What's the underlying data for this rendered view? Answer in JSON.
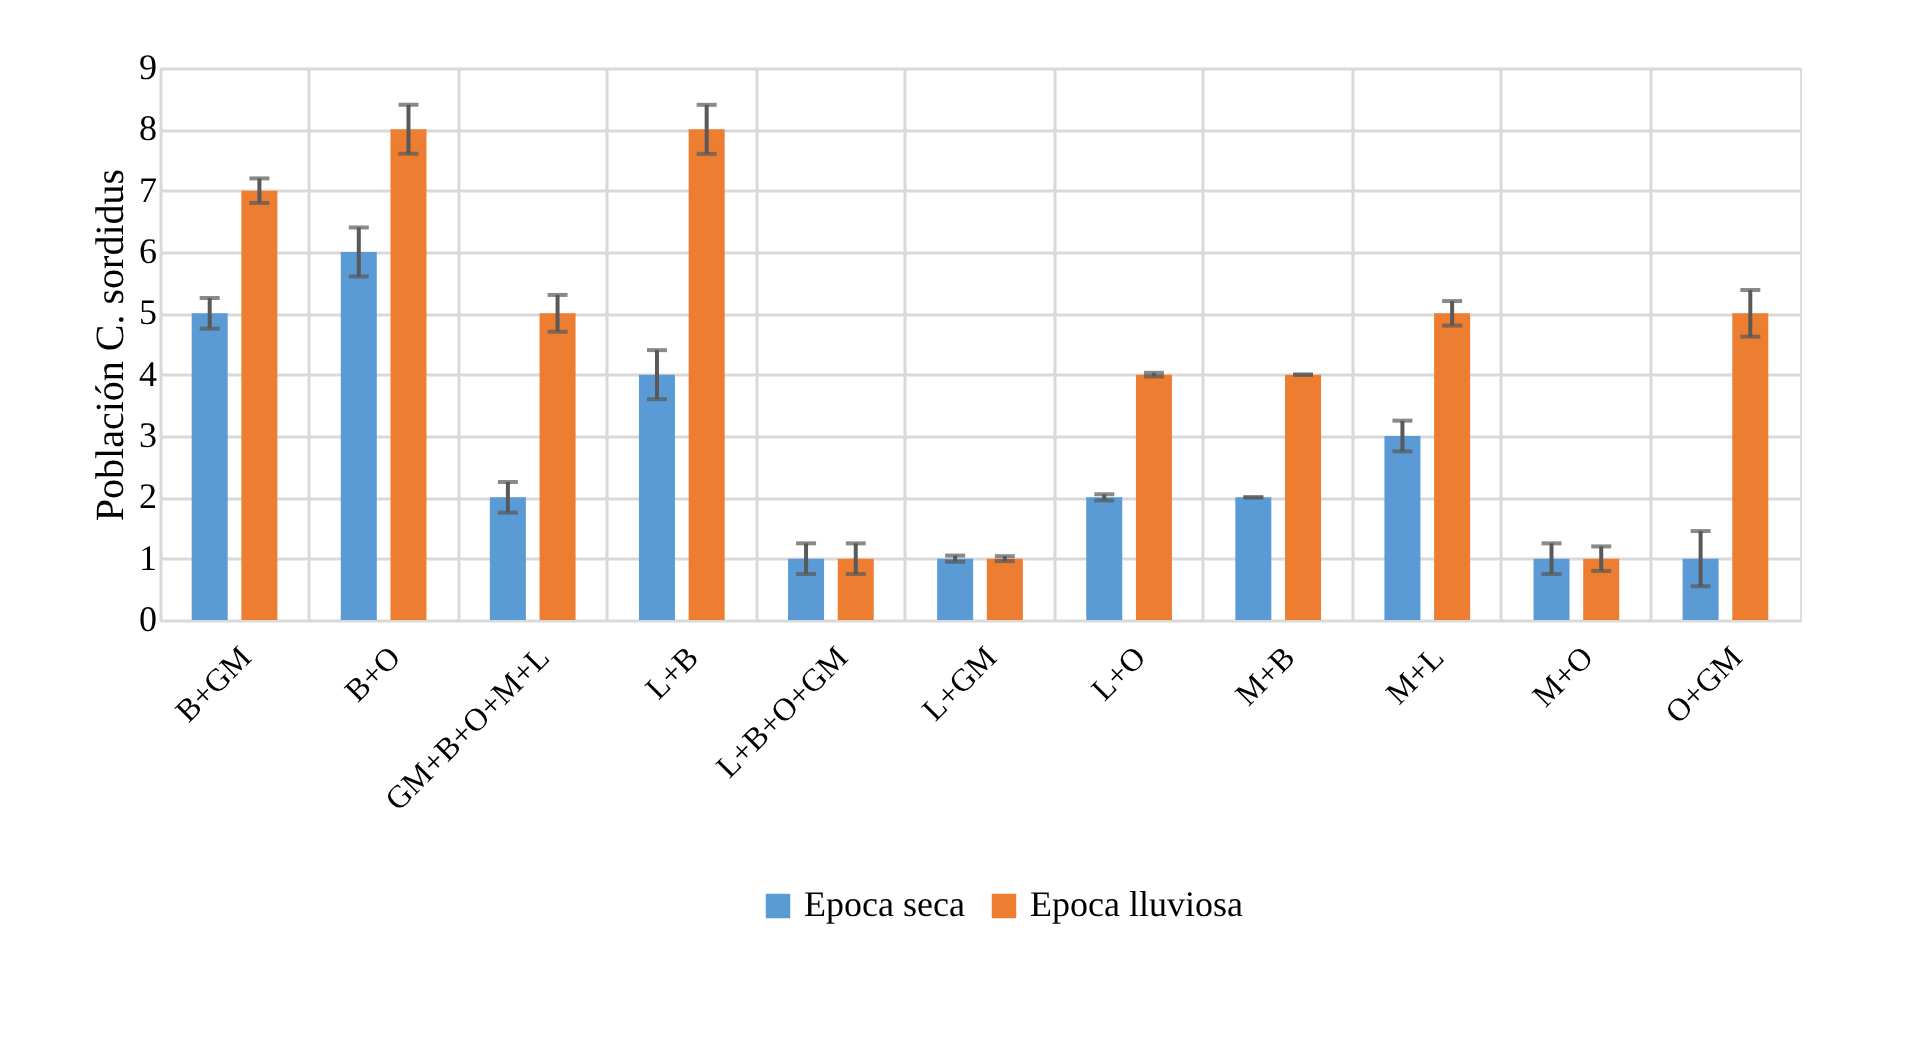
{
  "chart_data": {
    "type": "bar",
    "ylabel": "Población C. sordidus",
    "categories": [
      "B+GM",
      "B+O",
      "GM+B+O+M+L",
      "L+B",
      "L+B+O+GM",
      "L+GM",
      "L+O",
      "M+B",
      "M+L",
      "M+O",
      "O+GM"
    ],
    "series": [
      {
        "name": "Epoca seca",
        "color": "#5b9bd5",
        "values": [
          5,
          6,
          2,
          4,
          1,
          1,
          2,
          2,
          3,
          1,
          1
        ],
        "errors": [
          0.25,
          0.4,
          0.25,
          0.4,
          0.25,
          0.05,
          0.05,
          0,
          0.25,
          0.25,
          0.45
        ]
      },
      {
        "name": "Epoca lluviosa",
        "color": "#ed7d31",
        "values": [
          7,
          8,
          5,
          8,
          1,
          1,
          4,
          4,
          5,
          1,
          5
        ],
        "errors": [
          0.2,
          0.4,
          0.3,
          0.4,
          0.25,
          0.04,
          0.03,
          0,
          0.2,
          0.2,
          0.38
        ]
      }
    ],
    "ylim": [
      0,
      9
    ],
    "yticks": [
      0,
      1,
      2,
      3,
      4,
      5,
      6,
      7,
      8,
      9
    ],
    "grid": true,
    "legend": "bottom"
  }
}
